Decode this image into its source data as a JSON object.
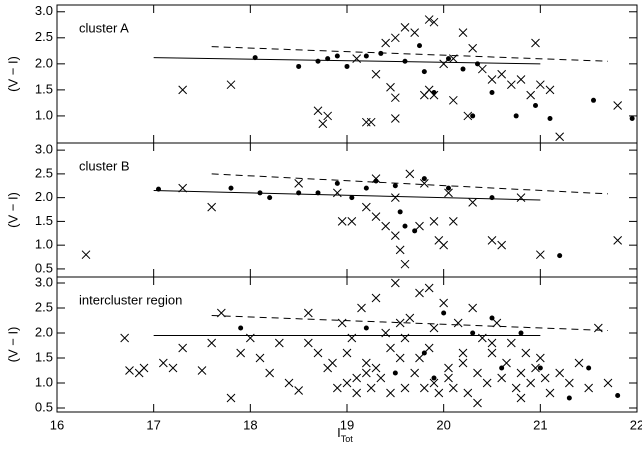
{
  "chart_data": [
    {
      "type": "scatter",
      "title": "cluster A",
      "ylabel": "(V − I)",
      "xlim": [
        16,
        22
      ],
      "ylim": [
        0.48,
        3.13
      ],
      "yticks": [
        {
          "value": 1,
          "label": "1.0"
        },
        1.5,
        {
          "value": 2,
          "label": "2.0"
        },
        2.5,
        {
          "value": 3,
          "label": "3.0"
        }
      ],
      "crosses": {
        "x": [
          17.3,
          17.8,
          18.7,
          18.75,
          18.8,
          19.2,
          19.25,
          19.4,
          19.5,
          19.6,
          19.7,
          19.85,
          19.9,
          19.5,
          19.45,
          19.5,
          19.8,
          19.85,
          19.9,
          20.0,
          20.1,
          20.2,
          20.3,
          20.4,
          20.5,
          20.6,
          20.7,
          20.8,
          20.9,
          20.95,
          21.0,
          21.1,
          21.2,
          21.8,
          19.1,
          19.3,
          20.25,
          20.1
        ],
        "y": [
          1.5,
          1.6,
          1.1,
          0.85,
          1.0,
          0.88,
          0.88,
          2.4,
          2.5,
          2.7,
          2.6,
          2.85,
          2.8,
          1.35,
          1.55,
          0.95,
          1.4,
          1.5,
          1.4,
          2.0,
          2.1,
          2.6,
          2.3,
          1.9,
          1.7,
          1.8,
          1.6,
          1.7,
          1.4,
          2.4,
          1.6,
          1.5,
          0.6,
          1.2,
          2.1,
          1.8,
          1.0,
          1.3
        ]
      },
      "dots": {
        "x": [
          18.05,
          18.5,
          18.7,
          18.8,
          18.9,
          19.0,
          19.2,
          19.35,
          19.6,
          19.75,
          19.8,
          20.05,
          20.2,
          20.3,
          20.5,
          20.75,
          20.95,
          21.1,
          21.55,
          21.95,
          19.9,
          20.35
        ],
        "y": [
          2.12,
          1.95,
          2.05,
          2.1,
          2.15,
          1.95,
          2.15,
          2.2,
          2.05,
          2.35,
          1.85,
          2.1,
          1.9,
          1.0,
          1.45,
          1.0,
          1.2,
          0.95,
          1.3,
          0.95,
          1.45,
          2.0
        ]
      },
      "fit": {
        "x": [
          17,
          21
        ],
        "y": [
          2.12,
          2.0
        ]
      },
      "dashed": {
        "x": [
          17.6,
          21.7
        ],
        "y": [
          2.33,
          2.05
        ]
      }
    },
    {
      "type": "scatter",
      "title": "cluster B",
      "ylabel": "(V − I)",
      "xlim": [
        16,
        22
      ],
      "ylim": [
        0.33,
        3.15
      ],
      "yticks": [
        0.5,
        {
          "value": 1,
          "label": "1.0"
        },
        1.5,
        {
          "value": 2,
          "label": "2.0"
        },
        2.5,
        {
          "value": 3,
          "label": "3.0"
        }
      ],
      "crosses": {
        "x": [
          16.3,
          17.3,
          17.6,
          18.5,
          18.9,
          19.2,
          19.3,
          19.4,
          19.5,
          19.55,
          19.6,
          19.65,
          19.5,
          19.3,
          19.8,
          19.9,
          19.95,
          20.0,
          20.1,
          20.3,
          20.5,
          20.6,
          20.8,
          21.0,
          21.8,
          18.95,
          19.05,
          20.05,
          19.75
        ],
        "y": [
          0.8,
          2.2,
          1.8,
          2.3,
          2.1,
          1.8,
          1.6,
          1.4,
          1.2,
          0.9,
          0.6,
          2.5,
          2.0,
          2.4,
          2.3,
          1.5,
          1.1,
          1.0,
          1.5,
          1.9,
          1.1,
          1.0,
          2.0,
          0.8,
          1.1,
          1.5,
          1.5,
          2.1,
          1.4
        ]
      },
      "dots": {
        "x": [
          17.05,
          17.8,
          18.1,
          18.2,
          18.5,
          18.7,
          18.9,
          19.05,
          19.2,
          19.3,
          19.5,
          19.6,
          19.8,
          20.05,
          20.5,
          21.2,
          19.55,
          19.7
        ],
        "y": [
          2.18,
          2.2,
          2.1,
          2.0,
          2.1,
          2.1,
          2.3,
          2.0,
          2.2,
          2.35,
          2.25,
          1.4,
          2.4,
          2.2,
          2.0,
          0.78,
          1.7,
          1.3
        ]
      },
      "fit": {
        "x": [
          17,
          21
        ],
        "y": [
          2.15,
          1.95
        ]
      },
      "dashed": {
        "x": [
          17.6,
          21.7
        ],
        "y": [
          2.5,
          2.08
        ]
      }
    },
    {
      "type": "scatter",
      "title": "intercluster region",
      "ylabel": "(V − I)",
      "xlabel": "I",
      "xlabel_sub": "Tot",
      "xlim": [
        16,
        22
      ],
      "ylim": [
        0.42,
        3.12
      ],
      "xticks": [
        16,
        17,
        18,
        19,
        20,
        21,
        22
      ],
      "yticks": [
        0.5,
        {
          "value": 1,
          "label": "1.0"
        },
        1.5,
        {
          "value": 2,
          "label": "2.0"
        },
        2.5,
        {
          "value": 3,
          "label": "3.0"
        }
      ],
      "crosses": {
        "x": [
          16.7,
          16.75,
          16.85,
          16.9,
          17.1,
          17.2,
          17.3,
          17.5,
          17.6,
          17.7,
          17.8,
          17.9,
          18.0,
          18.1,
          18.2,
          18.3,
          18.4,
          18.5,
          18.6,
          18.7,
          18.8,
          18.9,
          18.95,
          19.0,
          19.05,
          19.1,
          19.15,
          19.2,
          19.25,
          19.3,
          19.35,
          19.4,
          19.45,
          19.5,
          19.55,
          19.6,
          19.65,
          19.7,
          19.75,
          19.8,
          19.85,
          19.9,
          19.95,
          20.0,
          20.05,
          20.1,
          20.15,
          20.2,
          20.25,
          20.3,
          20.35,
          20.4,
          20.45,
          20.5,
          20.55,
          20.6,
          20.65,
          20.7,
          20.75,
          20.8,
          20.85,
          20.9,
          20.95,
          21.0,
          21.05,
          21.1,
          21.2,
          21.3,
          21.4,
          21.5,
          21.6,
          21.7,
          18.6,
          19.0,
          19.3,
          19.6,
          19.9,
          20.2,
          20.5,
          20.8,
          19.1,
          19.45,
          19.75,
          20.05,
          20.35,
          18.85,
          19.2,
          19.55,
          19.85
        ],
        "y": [
          1.9,
          1.25,
          1.2,
          1.3,
          1.4,
          1.3,
          1.7,
          1.25,
          1.8,
          2.4,
          0.7,
          1.6,
          1.9,
          1.5,
          1.2,
          1.8,
          1.0,
          0.85,
          2.4,
          1.6,
          1.3,
          0.9,
          2.2,
          1.0,
          1.9,
          0.8,
          2.5,
          1.4,
          0.9,
          2.7,
          1.1,
          2.0,
          0.8,
          3.0,
          1.5,
          0.9,
          2.3,
          1.2,
          2.8,
          0.9,
          1.7,
          2.1,
          0.8,
          2.6,
          1.3,
          0.9,
          2.2,
          1.6,
          0.8,
          2.5,
          1.2,
          1.9,
          1.0,
          1.6,
          2.2,
          1.1,
          1.4,
          1.8,
          0.9,
          1.2,
          1.6,
          1.0,
          1.3,
          1.5,
          1.1,
          0.8,
          1.2,
          1.0,
          1.4,
          0.9,
          2.1,
          1.0,
          1.8,
          1.6,
          1.3,
          1.9,
          1.0,
          1.4,
          1.8,
          0.7,
          1.1,
          1.7,
          1.5,
          1.1,
          0.6,
          1.4,
          1.2,
          2.2,
          2.9
        ]
      },
      "dots": {
        "x": [
          17.9,
          19.2,
          19.5,
          19.8,
          20.0,
          20.3,
          20.5,
          20.8,
          21.0,
          21.3,
          21.5,
          21.8,
          20.6,
          19.9
        ],
        "y": [
          2.1,
          2.1,
          1.2,
          1.6,
          2.4,
          2.0,
          2.3,
          2.0,
          1.3,
          0.7,
          1.3,
          0.75,
          1.3,
          1.1
        ]
      },
      "fit": {
        "x": [
          17,
          21
        ],
        "y": [
          1.95,
          1.95
        ]
      },
      "dashed": {
        "x": [
          17.6,
          21.7
        ],
        "y": [
          2.35,
          2.05
        ]
      }
    }
  ]
}
